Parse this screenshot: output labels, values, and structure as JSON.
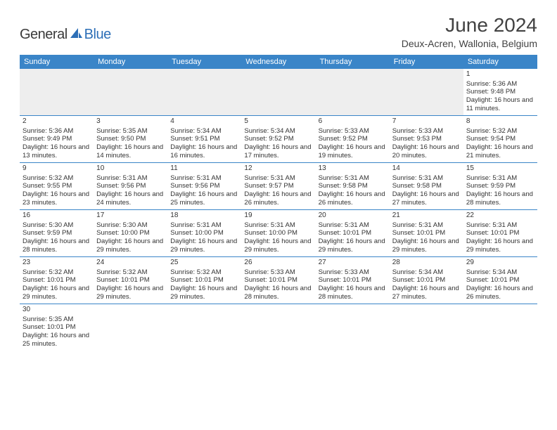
{
  "logo": {
    "general": "General",
    "blue": "Blue"
  },
  "title": "June 2024",
  "location": "Deux-Acren, Wallonia, Belgium",
  "headers": [
    "Sunday",
    "Monday",
    "Tuesday",
    "Wednesday",
    "Thursday",
    "Friday",
    "Saturday"
  ],
  "colors": {
    "header_bg": "#3a85c8",
    "header_text": "#ffffff",
    "text": "#333333",
    "title_text": "#424242",
    "logo_gray": "#3a3a3a",
    "logo_blue": "#2d6fb7",
    "empty_bg": "#eeeeee",
    "border": "#3a85c8"
  },
  "weeks": [
    [
      null,
      null,
      null,
      null,
      null,
      null,
      {
        "n": "1",
        "sunrise": "5:36 AM",
        "sunset": "9:48 PM",
        "daylight": "16 hours and 11 minutes."
      }
    ],
    [
      {
        "n": "2",
        "sunrise": "5:36 AM",
        "sunset": "9:49 PM",
        "daylight": "16 hours and 13 minutes."
      },
      {
        "n": "3",
        "sunrise": "5:35 AM",
        "sunset": "9:50 PM",
        "daylight": "16 hours and 14 minutes."
      },
      {
        "n": "4",
        "sunrise": "5:34 AM",
        "sunset": "9:51 PM",
        "daylight": "16 hours and 16 minutes."
      },
      {
        "n": "5",
        "sunrise": "5:34 AM",
        "sunset": "9:52 PM",
        "daylight": "16 hours and 17 minutes."
      },
      {
        "n": "6",
        "sunrise": "5:33 AM",
        "sunset": "9:52 PM",
        "daylight": "16 hours and 19 minutes."
      },
      {
        "n": "7",
        "sunrise": "5:33 AM",
        "sunset": "9:53 PM",
        "daylight": "16 hours and 20 minutes."
      },
      {
        "n": "8",
        "sunrise": "5:32 AM",
        "sunset": "9:54 PM",
        "daylight": "16 hours and 21 minutes."
      }
    ],
    [
      {
        "n": "9",
        "sunrise": "5:32 AM",
        "sunset": "9:55 PM",
        "daylight": "16 hours and 23 minutes."
      },
      {
        "n": "10",
        "sunrise": "5:31 AM",
        "sunset": "9:56 PM",
        "daylight": "16 hours and 24 minutes."
      },
      {
        "n": "11",
        "sunrise": "5:31 AM",
        "sunset": "9:56 PM",
        "daylight": "16 hours and 25 minutes."
      },
      {
        "n": "12",
        "sunrise": "5:31 AM",
        "sunset": "9:57 PM",
        "daylight": "16 hours and 26 minutes."
      },
      {
        "n": "13",
        "sunrise": "5:31 AM",
        "sunset": "9:58 PM",
        "daylight": "16 hours and 26 minutes."
      },
      {
        "n": "14",
        "sunrise": "5:31 AM",
        "sunset": "9:58 PM",
        "daylight": "16 hours and 27 minutes."
      },
      {
        "n": "15",
        "sunrise": "5:31 AM",
        "sunset": "9:59 PM",
        "daylight": "16 hours and 28 minutes."
      }
    ],
    [
      {
        "n": "16",
        "sunrise": "5:30 AM",
        "sunset": "9:59 PM",
        "daylight": "16 hours and 28 minutes."
      },
      {
        "n": "17",
        "sunrise": "5:30 AM",
        "sunset": "10:00 PM",
        "daylight": "16 hours and 29 minutes."
      },
      {
        "n": "18",
        "sunrise": "5:31 AM",
        "sunset": "10:00 PM",
        "daylight": "16 hours and 29 minutes."
      },
      {
        "n": "19",
        "sunrise": "5:31 AM",
        "sunset": "10:00 PM",
        "daylight": "16 hours and 29 minutes."
      },
      {
        "n": "20",
        "sunrise": "5:31 AM",
        "sunset": "10:01 PM",
        "daylight": "16 hours and 29 minutes."
      },
      {
        "n": "21",
        "sunrise": "5:31 AM",
        "sunset": "10:01 PM",
        "daylight": "16 hours and 29 minutes."
      },
      {
        "n": "22",
        "sunrise": "5:31 AM",
        "sunset": "10:01 PM",
        "daylight": "16 hours and 29 minutes."
      }
    ],
    [
      {
        "n": "23",
        "sunrise": "5:32 AM",
        "sunset": "10:01 PM",
        "daylight": "16 hours and 29 minutes."
      },
      {
        "n": "24",
        "sunrise": "5:32 AM",
        "sunset": "10:01 PM",
        "daylight": "16 hours and 29 minutes."
      },
      {
        "n": "25",
        "sunrise": "5:32 AM",
        "sunset": "10:01 PM",
        "daylight": "16 hours and 29 minutes."
      },
      {
        "n": "26",
        "sunrise": "5:33 AM",
        "sunset": "10:01 PM",
        "daylight": "16 hours and 28 minutes."
      },
      {
        "n": "27",
        "sunrise": "5:33 AM",
        "sunset": "10:01 PM",
        "daylight": "16 hours and 28 minutes."
      },
      {
        "n": "28",
        "sunrise": "5:34 AM",
        "sunset": "10:01 PM",
        "daylight": "16 hours and 27 minutes."
      },
      {
        "n": "29",
        "sunrise": "5:34 AM",
        "sunset": "10:01 PM",
        "daylight": "16 hours and 26 minutes."
      }
    ],
    [
      {
        "n": "30",
        "sunrise": "5:35 AM",
        "sunset": "10:01 PM",
        "daylight": "16 hours and 25 minutes."
      },
      null,
      null,
      null,
      null,
      null,
      null
    ]
  ],
  "labels": {
    "sunrise": "Sunrise:",
    "sunset": "Sunset:",
    "daylight": "Daylight:"
  }
}
